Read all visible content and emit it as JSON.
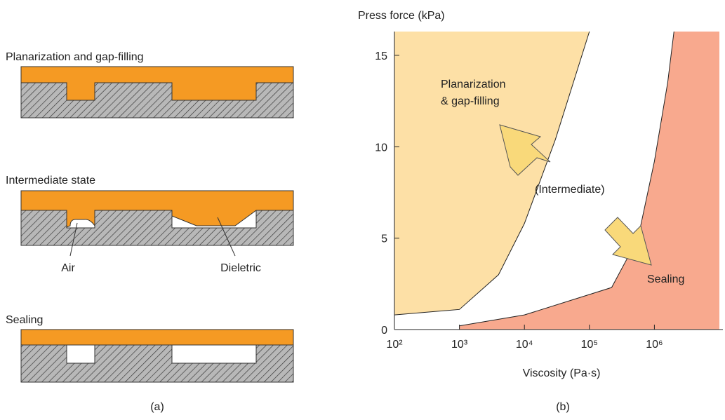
{
  "panel_a": {
    "caption": "(a)",
    "states": [
      {
        "title": "Planarization and gap-filling"
      },
      {
        "title": "Intermediate state",
        "labels": [
          "Air",
          "Dieletric"
        ]
      },
      {
        "title": "Sealing"
      }
    ]
  },
  "chart_data": {
    "type": "region",
    "caption": "(b)",
    "ylabel": "Press force (kPa)",
    "xlabel": "Viscosity (Pa·s)",
    "xscale": "log",
    "xlim": [
      100,
      10000000
    ],
    "ylim": [
      0,
      16.3
    ],
    "xticks": [
      {
        "value": 100,
        "label": "10²"
      },
      {
        "value": 1000,
        "label": "10³"
      },
      {
        "value": 10000,
        "label": "10⁴"
      },
      {
        "value": 100000,
        "label": "10⁵"
      },
      {
        "value": 1000000,
        "label": "10⁶"
      }
    ],
    "yticks": [
      0,
      5,
      10,
      15
    ],
    "regions": [
      {
        "label": [
          "Planarization",
          "& gap-filling"
        ],
        "color": "#fde0a6",
        "side": "left",
        "x": [
          100,
          1000,
          4000,
          10000,
          30000,
          100000
        ],
        "y": [
          0.8,
          1.1,
          3,
          5.8,
          10.4,
          16.3
        ]
      },
      {
        "label": [
          "Sealing"
        ],
        "color": "#f8a98e",
        "side": "right",
        "x": [
          1000,
          10000,
          220000,
          560000,
          1000000,
          1600000,
          2000000
        ],
        "y": [
          0.2,
          0.8,
          2.3,
          5,
          9.2,
          13.5,
          16.3
        ]
      }
    ],
    "annotations": [
      "(Intermediate)"
    ]
  }
}
